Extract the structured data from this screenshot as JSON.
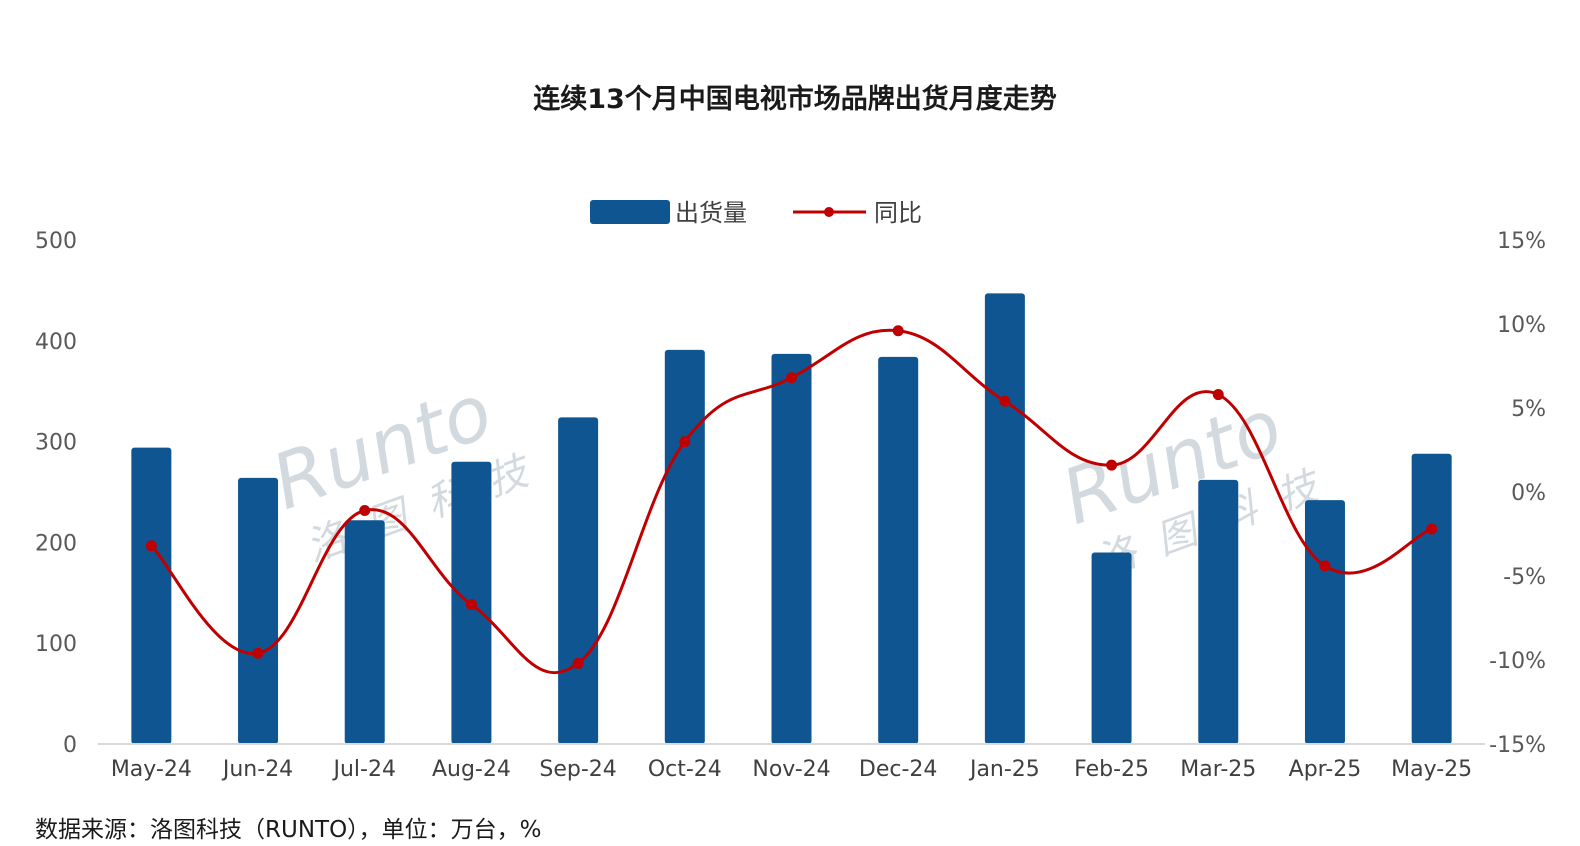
{
  "chart_data": {
    "type": "bar",
    "title": "连续13个月中国电视市场品牌出货月度走势",
    "categories": [
      "May-24",
      "Jun-24",
      "Jul-24",
      "Aug-24",
      "Sep-24",
      "Oct-24",
      "Nov-24",
      "Dec-24",
      "Jan-25",
      "Feb-25",
      "Mar-25",
      "Apr-25",
      "May-25"
    ],
    "series": [
      {
        "name": "出货量",
        "type": "bar",
        "axis": "left",
        "color": "#0f5591",
        "values": [
          294,
          264,
          222,
          280,
          324,
          391,
          387,
          384,
          447,
          190,
          262,
          242,
          288
        ]
      },
      {
        "name": "同比",
        "type": "line",
        "axis": "right",
        "color": "#c00000",
        "values": [
          -3.2,
          -9.6,
          -1.1,
          -6.7,
          -10.2,
          3.0,
          6.8,
          9.6,
          5.4,
          1.6,
          5.8,
          -4.4,
          -2.2
        ]
      }
    ],
    "left_axis": {
      "ylim": [
        0,
        500
      ],
      "ticks": [
        "0",
        "100",
        "200",
        "300",
        "400",
        "500"
      ]
    },
    "right_axis": {
      "ylim": [
        -15,
        15
      ],
      "ticks": [
        "-15%",
        "-10%",
        "-5%",
        "0%",
        "5%",
        "10%",
        "15%"
      ]
    },
    "legend": {
      "position": "top-center"
    },
    "grid": false,
    "watermark": {
      "latin": "Runto",
      "cn": "洛图科技"
    },
    "source_note": "数据来源：洛图科技（RUNTO），单位：万台，%"
  }
}
